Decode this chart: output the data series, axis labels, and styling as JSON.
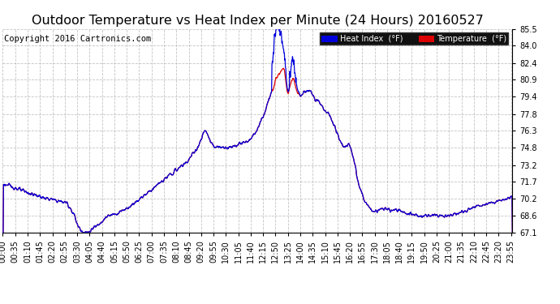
{
  "title": "Outdoor Temperature vs Heat Index per Minute (24 Hours) 20160527",
  "copyright": "Copyright 2016 Cartronics.com",
  "ylim": [
    67.1,
    85.5
  ],
  "yticks": [
    67.1,
    68.6,
    70.2,
    71.7,
    73.2,
    74.8,
    76.3,
    77.8,
    79.4,
    80.9,
    82.4,
    84.0,
    85.5
  ],
  "bg_color": "#ffffff",
  "grid_color": "#aaaaaa",
  "temp_color": "#dd0000",
  "heat_color": "#0000dd",
  "title_fontsize": 11.5,
  "copyright_fontsize": 7.5,
  "tick_fontsize": 7,
  "tick_interval": 35
}
